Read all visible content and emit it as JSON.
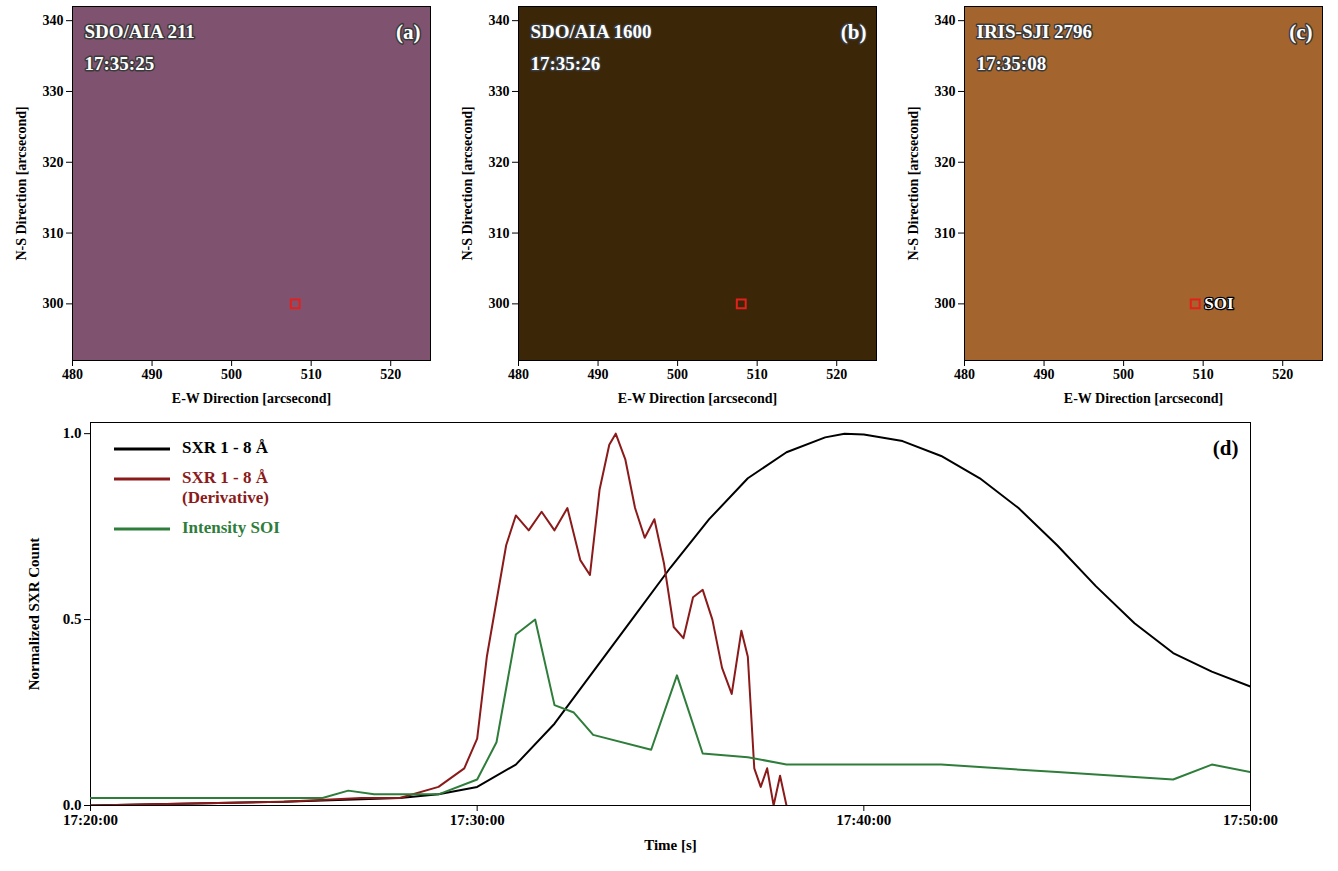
{
  "chart_data": [
    {
      "type": "image",
      "title": "SDO/AIA 211",
      "subtitle": "17:35:25",
      "panel": "(a)",
      "color": "#7f536f",
      "x_label": "E-W Direction [arcsecond]",
      "y_label": "N-S Direction [arcsecond]",
      "xlim": [
        480,
        525
      ],
      "ylim": [
        292,
        342
      ],
      "xticks": [
        480,
        490,
        500,
        510,
        520
      ],
      "yticks": [
        300,
        310,
        320,
        330,
        340
      ],
      "marker": "square",
      "markers": [
        {
          "x": 508,
          "y": 300,
          "color": "#e3211c"
        }
      ]
    },
    {
      "type": "image",
      "title": "SDO/AIA 1600",
      "subtitle": "17:35:26",
      "panel": "(b)",
      "color": "#3b2608",
      "x_label": "E-W Direction [arcsecond]",
      "y_label": "N-S Direction [arcsecond]",
      "xlim": [
        480,
        525
      ],
      "ylim": [
        292,
        342
      ],
      "xticks": [
        480,
        490,
        500,
        510,
        520
      ],
      "yticks": [
        300,
        310,
        320,
        330,
        340
      ],
      "marker": "square",
      "markers": [
        {
          "x": 508,
          "y": 300,
          "color": "#e3211c"
        }
      ]
    },
    {
      "type": "image",
      "title": "IRIS-SJI 2796",
      "subtitle": "17:35:08",
      "panel": "(c)",
      "color": "#a3642e",
      "x_label": "E-W Direction [arcsecond]",
      "y_label": "N-S Direction [arcsecond]",
      "xlim": [
        480,
        525
      ],
      "ylim": [
        292,
        342
      ],
      "xticks": [
        480,
        490,
        500,
        510,
        520
      ],
      "yticks": [
        300,
        310,
        320,
        330,
        340
      ],
      "marker": "square",
      "markers": [
        {
          "x": 509,
          "y": 300,
          "color": "#e3211c",
          "label": "SOI"
        }
      ]
    },
    {
      "type": "line",
      "panel": "(d)",
      "x_label": "Time [s]",
      "y_label": "Normalized SXR Count",
      "xlim": [
        "17:20:00",
        "17:50:00"
      ],
      "xticks": [
        "17:20:00",
        "17:30:00",
        "17:40:00",
        "17:50:00"
      ],
      "ylim": [
        0,
        1.03
      ],
      "yticks": [
        {
          "value": 0,
          "label": "0.0"
        },
        {
          "value": 0.5,
          "label": "0.5"
        },
        {
          "value": 1,
          "label": "1.0"
        }
      ],
      "legend": "top-left",
      "series": [
        {
          "name": "SXR 1 - 8 Å",
          "color": "#000000",
          "x": [
            "17:20:00",
            "17:25:00",
            "17:28:00",
            "17:29:00",
            "17:30:00",
            "17:31:00",
            "17:32:00",
            "17:33:00",
            "17:34:00",
            "17:35:00",
            "17:36:00",
            "17:37:00",
            "17:38:00",
            "17:39:00",
            "17:39:30",
            "17:40:00",
            "17:41:00",
            "17:42:00",
            "17:43:00",
            "17:44:00",
            "17:45:00",
            "17:46:00",
            "17:47:00",
            "17:48:00",
            "17:49:00",
            "17:50:00"
          ],
          "values": [
            0.0,
            0.01,
            0.02,
            0.03,
            0.05,
            0.11,
            0.22,
            0.36,
            0.5,
            0.64,
            0.77,
            0.88,
            0.95,
            0.99,
            1.0,
            0.998,
            0.98,
            0.94,
            0.88,
            0.8,
            0.7,
            0.59,
            0.49,
            0.41,
            0.36,
            0.32
          ]
        },
        {
          "name": "SXR 1 - 8 Å (Derivative)",
          "color": "#8b1a1a",
          "x": [
            "17:20:00",
            "17:25:00",
            "17:27:00",
            "17:28:00",
            "17:29:00",
            "17:29:40",
            "17:30:00",
            "17:30:15",
            "17:30:30",
            "17:30:45",
            "17:31:00",
            "17:31:20",
            "17:31:40",
            "17:32:00",
            "17:32:20",
            "17:32:40",
            "17:32:55",
            "17:33:10",
            "17:33:25",
            "17:33:35",
            "17:33:50",
            "17:34:05",
            "17:34:20",
            "17:34:35",
            "17:34:50",
            "17:35:05",
            "17:35:20",
            "17:35:35",
            "17:35:50",
            "17:36:05",
            "17:36:20",
            "17:36:35",
            "17:36:50",
            "17:37:00",
            "17:37:10",
            "17:37:20",
            "17:37:30",
            "17:37:40",
            "17:37:50",
            "17:38:00"
          ],
          "values": [
            0.0,
            0.01,
            0.02,
            0.02,
            0.05,
            0.1,
            0.18,
            0.4,
            0.55,
            0.7,
            0.78,
            0.74,
            0.79,
            0.74,
            0.8,
            0.66,
            0.62,
            0.85,
            0.97,
            1.0,
            0.93,
            0.8,
            0.72,
            0.77,
            0.65,
            0.48,
            0.45,
            0.56,
            0.58,
            0.5,
            0.37,
            0.3,
            0.47,
            0.4,
            0.1,
            0.05,
            0.1,
            0.0,
            0.08,
            0.0
          ]
        },
        {
          "name": "Intensity SOI",
          "color": "#2e7d3a",
          "x": [
            "17:20:00",
            "17:24:00",
            "17:26:00",
            "17:26:40",
            "17:27:20",
            "17:29:00",
            "17:30:00",
            "17:30:30",
            "17:31:00",
            "17:31:30",
            "17:32:00",
            "17:32:30",
            "17:33:00",
            "17:34:30",
            "17:35:10",
            "17:35:50",
            "17:37:00",
            "17:38:00",
            "17:42:00",
            "17:45:00",
            "17:48:00",
            "17:49:00",
            "17:50:00"
          ],
          "values": [
            0.02,
            0.02,
            0.02,
            0.04,
            0.03,
            0.03,
            0.07,
            0.17,
            0.46,
            0.5,
            0.27,
            0.25,
            0.19,
            0.15,
            0.35,
            0.14,
            0.13,
            0.11,
            0.11,
            0.09,
            0.07,
            0.11,
            0.09
          ]
        }
      ]
    }
  ]
}
